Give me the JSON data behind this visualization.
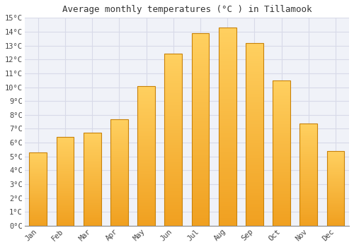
{
  "title": "Average monthly temperatures (°C ) in Tillamook",
  "months": [
    "Jan",
    "Feb",
    "Mar",
    "Apr",
    "May",
    "Jun",
    "Jul",
    "Aug",
    "Sep",
    "Oct",
    "Nov",
    "Dec"
  ],
  "values": [
    5.3,
    6.4,
    6.7,
    7.7,
    10.1,
    12.4,
    13.9,
    14.3,
    13.2,
    10.5,
    7.4,
    5.4
  ],
  "bar_color_bottom": "#F0A020",
  "bar_color_top": "#FFD060",
  "bar_edge_color": "#C8820A",
  "ylim": [
    0,
    15
  ],
  "yticks": [
    0,
    1,
    2,
    3,
    4,
    5,
    6,
    7,
    8,
    9,
    10,
    11,
    12,
    13,
    14,
    15
  ],
  "background_color": "#ffffff",
  "plot_bg_color": "#f0f2f8",
  "grid_color": "#d8dae8",
  "title_fontsize": 9,
  "tick_fontsize": 7.5,
  "font_family": "monospace",
  "bar_width": 0.65
}
